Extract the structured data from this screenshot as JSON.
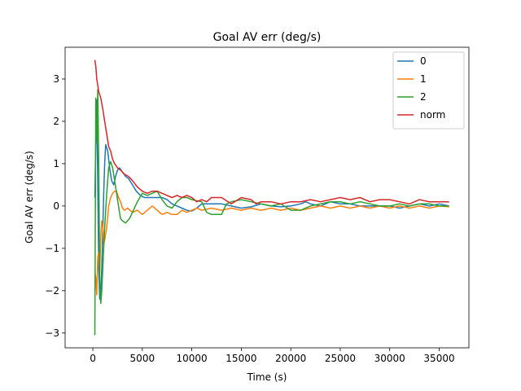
{
  "chart_data": {
    "type": "line",
    "title": "Goal AV err (deg/s)",
    "xlabel": "Time (s)",
    "ylabel": "Goal AV err (deg/s)",
    "xlim": [
      -2800,
      38000
    ],
    "ylim": [
      -3.35,
      3.75
    ],
    "xticks": [
      0,
      5000,
      10000,
      15000,
      20000,
      25000,
      30000,
      35000
    ],
    "yticks": [
      -3,
      -2,
      -1,
      0,
      1,
      2,
      3
    ],
    "grid": false,
    "legend_position": "top-right",
    "series": [
      {
        "name": "0",
        "color": "#1f77b4",
        "points": [
          [
            200,
            0.2
          ],
          [
            300,
            1.5
          ],
          [
            400,
            2.5
          ],
          [
            500,
            0.5
          ],
          [
            600,
            -1.5
          ],
          [
            700,
            -2.2
          ],
          [
            800,
            -2.0
          ],
          [
            900,
            -1.5
          ],
          [
            1000,
            -0.6
          ],
          [
            1100,
            0.3
          ],
          [
            1200,
            1.0
          ],
          [
            1300,
            1.45
          ],
          [
            1500,
            1.3
          ],
          [
            1700,
            0.9
          ],
          [
            1900,
            0.6
          ],
          [
            2100,
            0.5
          ],
          [
            2300,
            0.7
          ],
          [
            2500,
            0.85
          ],
          [
            2700,
            0.9
          ],
          [
            3000,
            0.8
          ],
          [
            3300,
            0.7
          ],
          [
            3600,
            0.65
          ],
          [
            4000,
            0.5
          ],
          [
            4400,
            0.35
          ],
          [
            4800,
            0.25
          ],
          [
            5200,
            0.2
          ],
          [
            6000,
            0.2
          ],
          [
            7000,
            0.2
          ],
          [
            7500,
            0.15
          ],
          [
            8000,
            0.05
          ],
          [
            9000,
            -0.05
          ],
          [
            9500,
            -0.1
          ],
          [
            10000,
            -0.12
          ],
          [
            10500,
            -0.05
          ],
          [
            11000,
            0.05
          ],
          [
            12000,
            0.05
          ],
          [
            13000,
            0.05
          ],
          [
            14000,
            0.0
          ],
          [
            15000,
            -0.05
          ],
          [
            16000,
            -0.02
          ],
          [
            17000,
            0.05
          ],
          [
            18000,
            0.0
          ],
          [
            19000,
            -0.02
          ],
          [
            20000,
            0.0
          ],
          [
            21000,
            0.05
          ],
          [
            21500,
            0.1
          ],
          [
            22000,
            0.05
          ],
          [
            23000,
            0.0
          ],
          [
            24000,
            0.1
          ],
          [
            25000,
            0.05
          ],
          [
            26000,
            0.05
          ],
          [
            27000,
            0.0
          ],
          [
            28000,
            0.0
          ],
          [
            29000,
            0.0
          ],
          [
            30000,
            0.0
          ],
          [
            31000,
            -0.05
          ],
          [
            32000,
            0.0
          ],
          [
            33000,
            0.05
          ],
          [
            34000,
            0.0
          ],
          [
            35000,
            0.05
          ],
          [
            36000,
            0.0
          ]
        ]
      },
      {
        "name": "1",
        "color": "#ff7f0e",
        "points": [
          [
            200,
            -1.55
          ],
          [
            300,
            -1.7
          ],
          [
            400,
            -2.1
          ],
          [
            500,
            -1.2
          ],
          [
            600,
            -1.1
          ],
          [
            700,
            -1.6
          ],
          [
            800,
            -0.7
          ],
          [
            900,
            -0.35
          ],
          [
            1000,
            -0.5
          ],
          [
            1100,
            -0.9
          ],
          [
            1200,
            -0.8
          ],
          [
            1400,
            -0.5
          ],
          [
            1600,
            0.0
          ],
          [
            1800,
            0.2
          ],
          [
            2000,
            0.3
          ],
          [
            2200,
            0.35
          ],
          [
            2400,
            0.35
          ],
          [
            2600,
            0.2
          ],
          [
            2800,
            0.1
          ],
          [
            3000,
            -0.05
          ],
          [
            3200,
            -0.1
          ],
          [
            3500,
            -0.05
          ],
          [
            4000,
            -0.15
          ],
          [
            4500,
            -0.1
          ],
          [
            5000,
            -0.2
          ],
          [
            5500,
            -0.1
          ],
          [
            6000,
            0.0
          ],
          [
            6500,
            -0.1
          ],
          [
            7000,
            -0.2
          ],
          [
            7500,
            -0.15
          ],
          [
            8000,
            -0.2
          ],
          [
            8500,
            -0.2
          ],
          [
            9000,
            -0.1
          ],
          [
            9500,
            -0.15
          ],
          [
            10000,
            -0.1
          ],
          [
            10500,
            -0.05
          ],
          [
            11000,
            -0.1
          ],
          [
            12000,
            -0.05
          ],
          [
            13000,
            -0.1
          ],
          [
            14000,
            -0.05
          ],
          [
            15000,
            -0.1
          ],
          [
            16000,
            -0.05
          ],
          [
            17000,
            -0.1
          ],
          [
            18000,
            -0.05
          ],
          [
            19000,
            -0.1
          ],
          [
            20000,
            -0.05
          ],
          [
            21000,
            -0.1
          ],
          [
            22000,
            -0.05
          ],
          [
            23000,
            0.0
          ],
          [
            24000,
            -0.05
          ],
          [
            25000,
            0.0
          ],
          [
            26000,
            -0.05
          ],
          [
            27000,
            0.0
          ],
          [
            28000,
            -0.05
          ],
          [
            29000,
            0.0
          ],
          [
            30000,
            -0.05
          ],
          [
            31000,
            0.0
          ],
          [
            32000,
            -0.05
          ],
          [
            33000,
            0.0
          ],
          [
            34000,
            -0.05
          ],
          [
            35000,
            0.0
          ],
          [
            36000,
            -0.02
          ]
        ]
      },
      {
        "name": "2",
        "color": "#2ca02c",
        "points": [
          [
            200,
            -3.05
          ],
          [
            300,
            2.55
          ],
          [
            400,
            1.5
          ],
          [
            500,
            2.75
          ],
          [
            600,
            1.0
          ],
          [
            700,
            -1.8
          ],
          [
            800,
            -2.3
          ],
          [
            900,
            -2.0
          ],
          [
            1000,
            -1.5
          ],
          [
            1200,
            -0.5
          ],
          [
            1400,
            0.3
          ],
          [
            1600,
            0.9
          ],
          [
            1800,
            1.05
          ],
          [
            2000,
            0.9
          ],
          [
            2200,
            0.6
          ],
          [
            2400,
            0.3
          ],
          [
            2600,
            0.0
          ],
          [
            2800,
            -0.3
          ],
          [
            3000,
            -0.35
          ],
          [
            3300,
            -0.4
          ],
          [
            3700,
            -0.3
          ],
          [
            4000,
            -0.15
          ],
          [
            4500,
            0.1
          ],
          [
            5000,
            0.3
          ],
          [
            5500,
            0.25
          ],
          [
            6000,
            0.3
          ],
          [
            6500,
            0.35
          ],
          [
            7000,
            0.15
          ],
          [
            7500,
            0.0
          ],
          [
            8000,
            -0.05
          ],
          [
            8500,
            0.1
          ],
          [
            9000,
            0.2
          ],
          [
            9500,
            0.2
          ],
          [
            10000,
            0.15
          ],
          [
            11000,
            0.1
          ],
          [
            11500,
            -0.15
          ],
          [
            12000,
            -0.2
          ],
          [
            13000,
            -0.2
          ],
          [
            13500,
            0.05
          ],
          [
            14000,
            0.1
          ],
          [
            15000,
            0.15
          ],
          [
            16000,
            0.1
          ],
          [
            17000,
            0.05
          ],
          [
            18000,
            0.0
          ],
          [
            19000,
            0.05
          ],
          [
            20000,
            -0.1
          ],
          [
            21000,
            -0.1
          ],
          [
            22000,
            0.0
          ],
          [
            23000,
            0.05
          ],
          [
            24000,
            0.1
          ],
          [
            25000,
            0.1
          ],
          [
            26000,
            0.05
          ],
          [
            27000,
            0.1
          ],
          [
            28000,
            0.05
          ],
          [
            29000,
            0.0
          ],
          [
            30000,
            0.0
          ],
          [
            31000,
            0.05
          ],
          [
            32000,
            0.0
          ],
          [
            33000,
            0.05
          ],
          [
            34000,
            0.05
          ],
          [
            35000,
            0.0
          ],
          [
            36000,
            0.0
          ]
        ]
      },
      {
        "name": "norm",
        "color": "#d62728",
        "points": [
          [
            200,
            3.45
          ],
          [
            300,
            3.3
          ],
          [
            400,
            3.0
          ],
          [
            600,
            2.7
          ],
          [
            800,
            2.55
          ],
          [
            1000,
            2.3
          ],
          [
            1200,
            2.0
          ],
          [
            1400,
            1.7
          ],
          [
            1600,
            1.4
          ],
          [
            1800,
            1.3
          ],
          [
            2000,
            1.1
          ],
          [
            2200,
            1.0
          ],
          [
            2500,
            0.9
          ],
          [
            2800,
            0.85
          ],
          [
            3200,
            0.75
          ],
          [
            3600,
            0.7
          ],
          [
            4000,
            0.6
          ],
          [
            4500,
            0.45
          ],
          [
            5000,
            0.35
          ],
          [
            5500,
            0.3
          ],
          [
            6000,
            0.35
          ],
          [
            6500,
            0.35
          ],
          [
            7000,
            0.3
          ],
          [
            7500,
            0.25
          ],
          [
            8000,
            0.2
          ],
          [
            8500,
            0.25
          ],
          [
            9000,
            0.2
          ],
          [
            9500,
            0.25
          ],
          [
            10000,
            0.2
          ],
          [
            10500,
            0.1
          ],
          [
            11000,
            0.15
          ],
          [
            11500,
            0.1
          ],
          [
            12000,
            0.2
          ],
          [
            13000,
            0.2
          ],
          [
            14000,
            0.05
          ],
          [
            15000,
            0.2
          ],
          [
            16000,
            0.15
          ],
          [
            16500,
            0.05
          ],
          [
            17000,
            0.1
          ],
          [
            18000,
            0.1
          ],
          [
            19000,
            0.05
          ],
          [
            20000,
            0.1
          ],
          [
            21000,
            0.1
          ],
          [
            22000,
            0.15
          ],
          [
            23000,
            0.1
          ],
          [
            24000,
            0.15
          ],
          [
            25000,
            0.2
          ],
          [
            26000,
            0.15
          ],
          [
            27000,
            0.2
          ],
          [
            28000,
            0.1
          ],
          [
            29000,
            0.15
          ],
          [
            30000,
            0.15
          ],
          [
            31000,
            0.1
          ],
          [
            32000,
            0.05
          ],
          [
            33000,
            0.15
          ],
          [
            34000,
            0.1
          ],
          [
            35000,
            0.1
          ],
          [
            36000,
            0.1
          ]
        ]
      }
    ]
  }
}
